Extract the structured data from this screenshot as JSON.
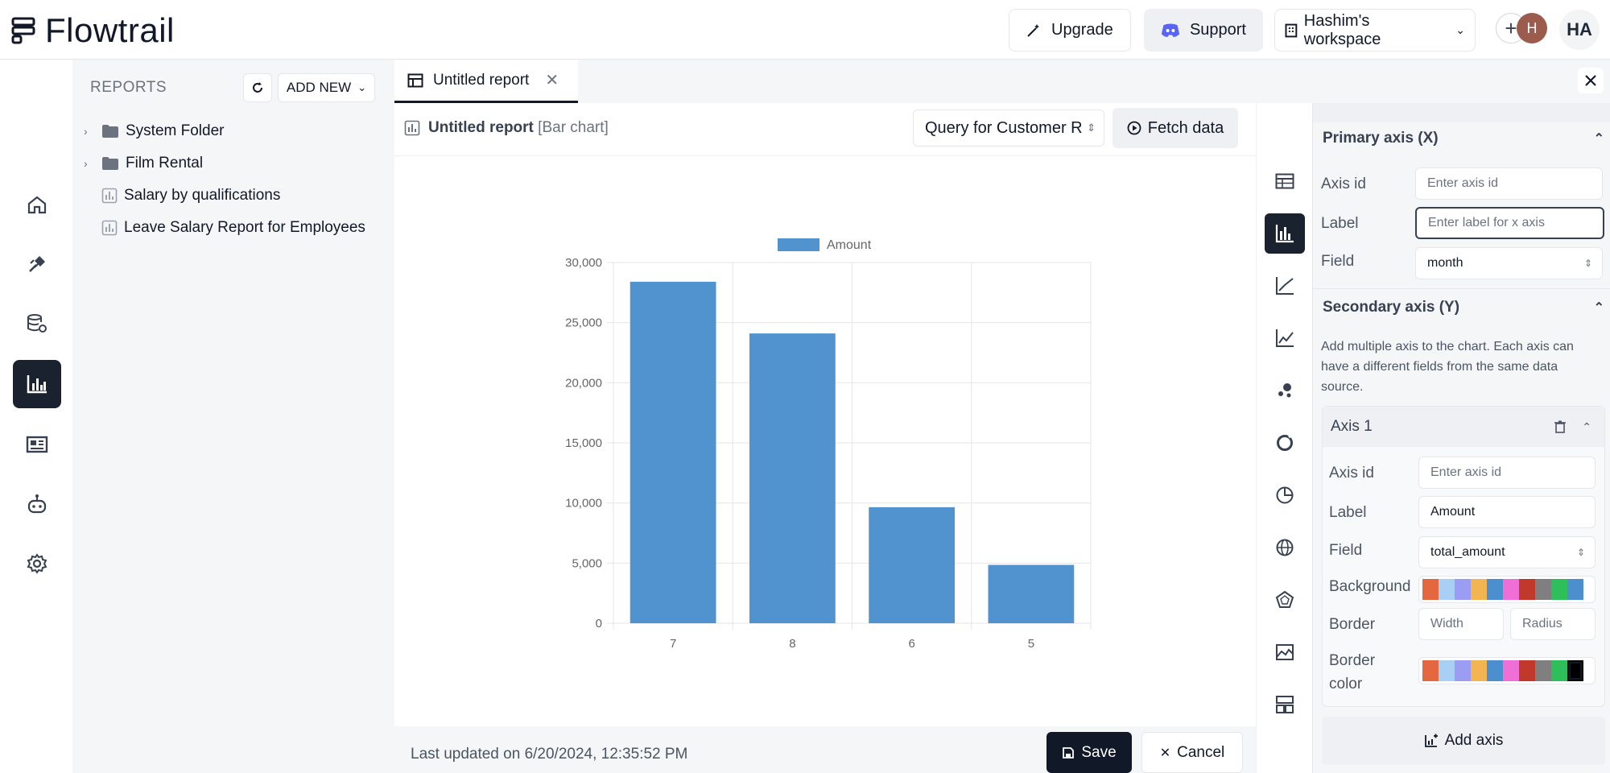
{
  "app": {
    "name": "Flowtrail"
  },
  "topbar": {
    "upgrade_label": "Upgrade",
    "support_label": "Support",
    "workspace_label": "Hashim's workspace",
    "user_avatar_initial": "H",
    "user_initials": "HA"
  },
  "sidebar": {
    "title": "REPORTS",
    "add_new_label": "ADD NEW",
    "items": [
      {
        "label": "System Folder",
        "type": "folder"
      },
      {
        "label": "Film Rental",
        "type": "folder"
      },
      {
        "label": "Salary by qualifications",
        "type": "report"
      },
      {
        "label": "Leave Salary Report for Employees",
        "type": "report"
      }
    ]
  },
  "tabs": [
    {
      "label": "Untitled report"
    }
  ],
  "report": {
    "title": "Untitled report",
    "chart_kind": "[Bar chart]",
    "query_value": "Query for Customer R",
    "fetch_label": "Fetch data",
    "last_updated": "Last updated on 6/20/2024, 12:35:52 PM",
    "save_label": "Save",
    "cancel_label": "Cancel"
  },
  "chart_data": {
    "type": "bar",
    "categories": [
      "7",
      "8",
      "6",
      "5"
    ],
    "series": [
      {
        "name": "Amount",
        "values": [
          28400,
          24100,
          9650,
          4850
        ],
        "color": "#5093cf"
      }
    ],
    "ylim": [
      0,
      30000
    ],
    "yticks": [
      "0",
      "5,000",
      "10,000",
      "15,000",
      "20,000",
      "25,000",
      "30,000"
    ],
    "grid": true,
    "legend": "top-center"
  },
  "config": {
    "primary_axis": {
      "heading": "Primary axis (X)",
      "axis_id_label": "Axis id",
      "axis_id_placeholder": "Enter axis id",
      "label_label": "Label",
      "label_placeholder": "Enter label for x axis",
      "field_label": "Field",
      "field_value": "month"
    },
    "secondary_axis": {
      "heading": "Secondary axis (Y)",
      "help": "Add multiple axis to the chart. Each axis can have a different fields from the same data source.",
      "axis": {
        "title": "Axis 1",
        "axis_id_label": "Axis id",
        "axis_id_placeholder": "Enter axis id",
        "label_label": "Label",
        "label_value": "Amount",
        "field_label": "Field",
        "field_value": "total_amount",
        "background_label": "Background",
        "border_label": "Border",
        "border_width_placeholder": "Width",
        "border_radius_placeholder": "Radius",
        "border_color_label_1": "Border",
        "border_color_label_2": "color"
      },
      "add_axis_label": "Add axis"
    },
    "palette": [
      "#e4683f",
      "#a9cff5",
      "#9b9cf3",
      "#f2b551",
      "#4c8fcf",
      "#ef6fd6",
      "#c0392b",
      "#7f7f7f",
      "#2fbf5a",
      "#4c8fcf"
    ],
    "border_palette": [
      "#e4683f",
      "#a9cff5",
      "#9b9cf3",
      "#f2b551",
      "#4c8fcf",
      "#ef6fd6",
      "#c0392b",
      "#7f7f7f",
      "#2fbf5a",
      "#000000"
    ]
  }
}
